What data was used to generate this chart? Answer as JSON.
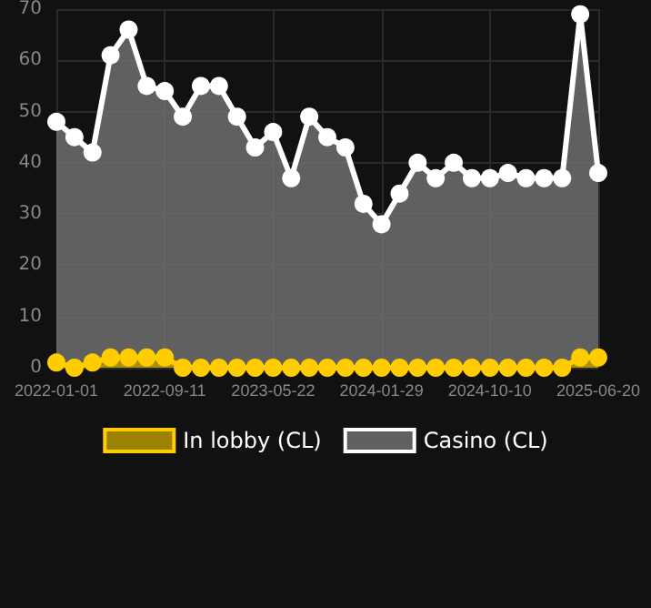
{
  "chart_data": {
    "type": "area",
    "categories": [
      "2022-01-01",
      null,
      null,
      null,
      null,
      null,
      "2022-09-11",
      null,
      null,
      null,
      null,
      null,
      "2023-05-22",
      null,
      null,
      null,
      null,
      null,
      "2024-01-29",
      null,
      null,
      null,
      null,
      null,
      "2024-10-10",
      null,
      null,
      null,
      null,
      null,
      "2025-06-20"
    ],
    "series": [
      {
        "name": "In lobby (CL)",
        "color": "#ffcc00",
        "values": [
          1,
          0,
          1,
          2,
          2,
          2,
          2,
          0,
          0,
          0,
          0,
          0,
          0,
          0,
          0,
          0,
          0,
          0,
          0,
          0,
          0,
          0,
          0,
          0,
          0,
          0,
          0,
          0,
          0,
          2,
          2
        ]
      },
      {
        "name": "Casino (CL)",
        "color": "#ffffff",
        "values": [
          48,
          45,
          42,
          61,
          66,
          55,
          54,
          49,
          55,
          55,
          49,
          43,
          46,
          37,
          49,
          45,
          43,
          32,
          28,
          34,
          40,
          37,
          40,
          37,
          37,
          38,
          37,
          37,
          37,
          69,
          38
        ]
      }
    ],
    "ylim": [
      0,
      70
    ],
    "yticks": [
      0,
      10,
      20,
      30,
      40,
      50,
      60,
      70
    ],
    "grid": true,
    "legend": "bottom",
    "marker": "circle",
    "line_style": "solid"
  }
}
